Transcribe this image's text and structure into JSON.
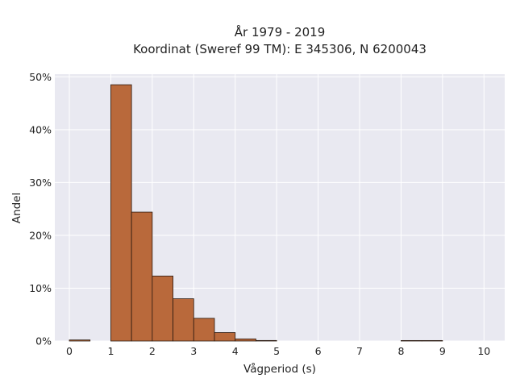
{
  "chart_data": {
    "type": "bar",
    "title_line1": "År 1979 - 2019",
    "title_line2": "Koordinat (Sweref 99 TM): E 345306, N 6200043",
    "xlabel": "Vågperiod (s)",
    "ylabel": "Andel",
    "xlim": [
      -0.35,
      10.5
    ],
    "ylim": [
      0,
      50.5
    ],
    "xticks": [
      0,
      1,
      2,
      3,
      4,
      5,
      6,
      7,
      8,
      9,
      10
    ],
    "xtick_labels": [
      "0",
      "1",
      "2",
      "3",
      "4",
      "5",
      "6",
      "7",
      "8",
      "9",
      "10"
    ],
    "yticks": [
      0,
      10,
      20,
      30,
      40,
      50
    ],
    "ytick_labels": [
      "0%",
      "10%",
      "20%",
      "30%",
      "40%",
      "50%"
    ],
    "bin_width": 0.5,
    "bins": [
      {
        "x0": 0.0,
        "value": 0.2
      },
      {
        "x0": 1.0,
        "value": 48.5
      },
      {
        "x0": 1.5,
        "value": 24.4
      },
      {
        "x0": 2.0,
        "value": 12.3
      },
      {
        "x0": 2.5,
        "value": 8.0
      },
      {
        "x0": 3.0,
        "value": 4.3
      },
      {
        "x0": 3.5,
        "value": 1.6
      },
      {
        "x0": 4.0,
        "value": 0.4
      },
      {
        "x0": 4.5,
        "value": 0.1
      },
      {
        "x0": 8.0,
        "value": 0.05
      },
      {
        "x0": 8.5,
        "value": 0.05
      }
    ],
    "grid": true,
    "bar_color": "#b9693b",
    "bar_edge_color": "#2b1a10",
    "background_color": "#e9e9f1",
    "grid_color": "#ffffff"
  }
}
